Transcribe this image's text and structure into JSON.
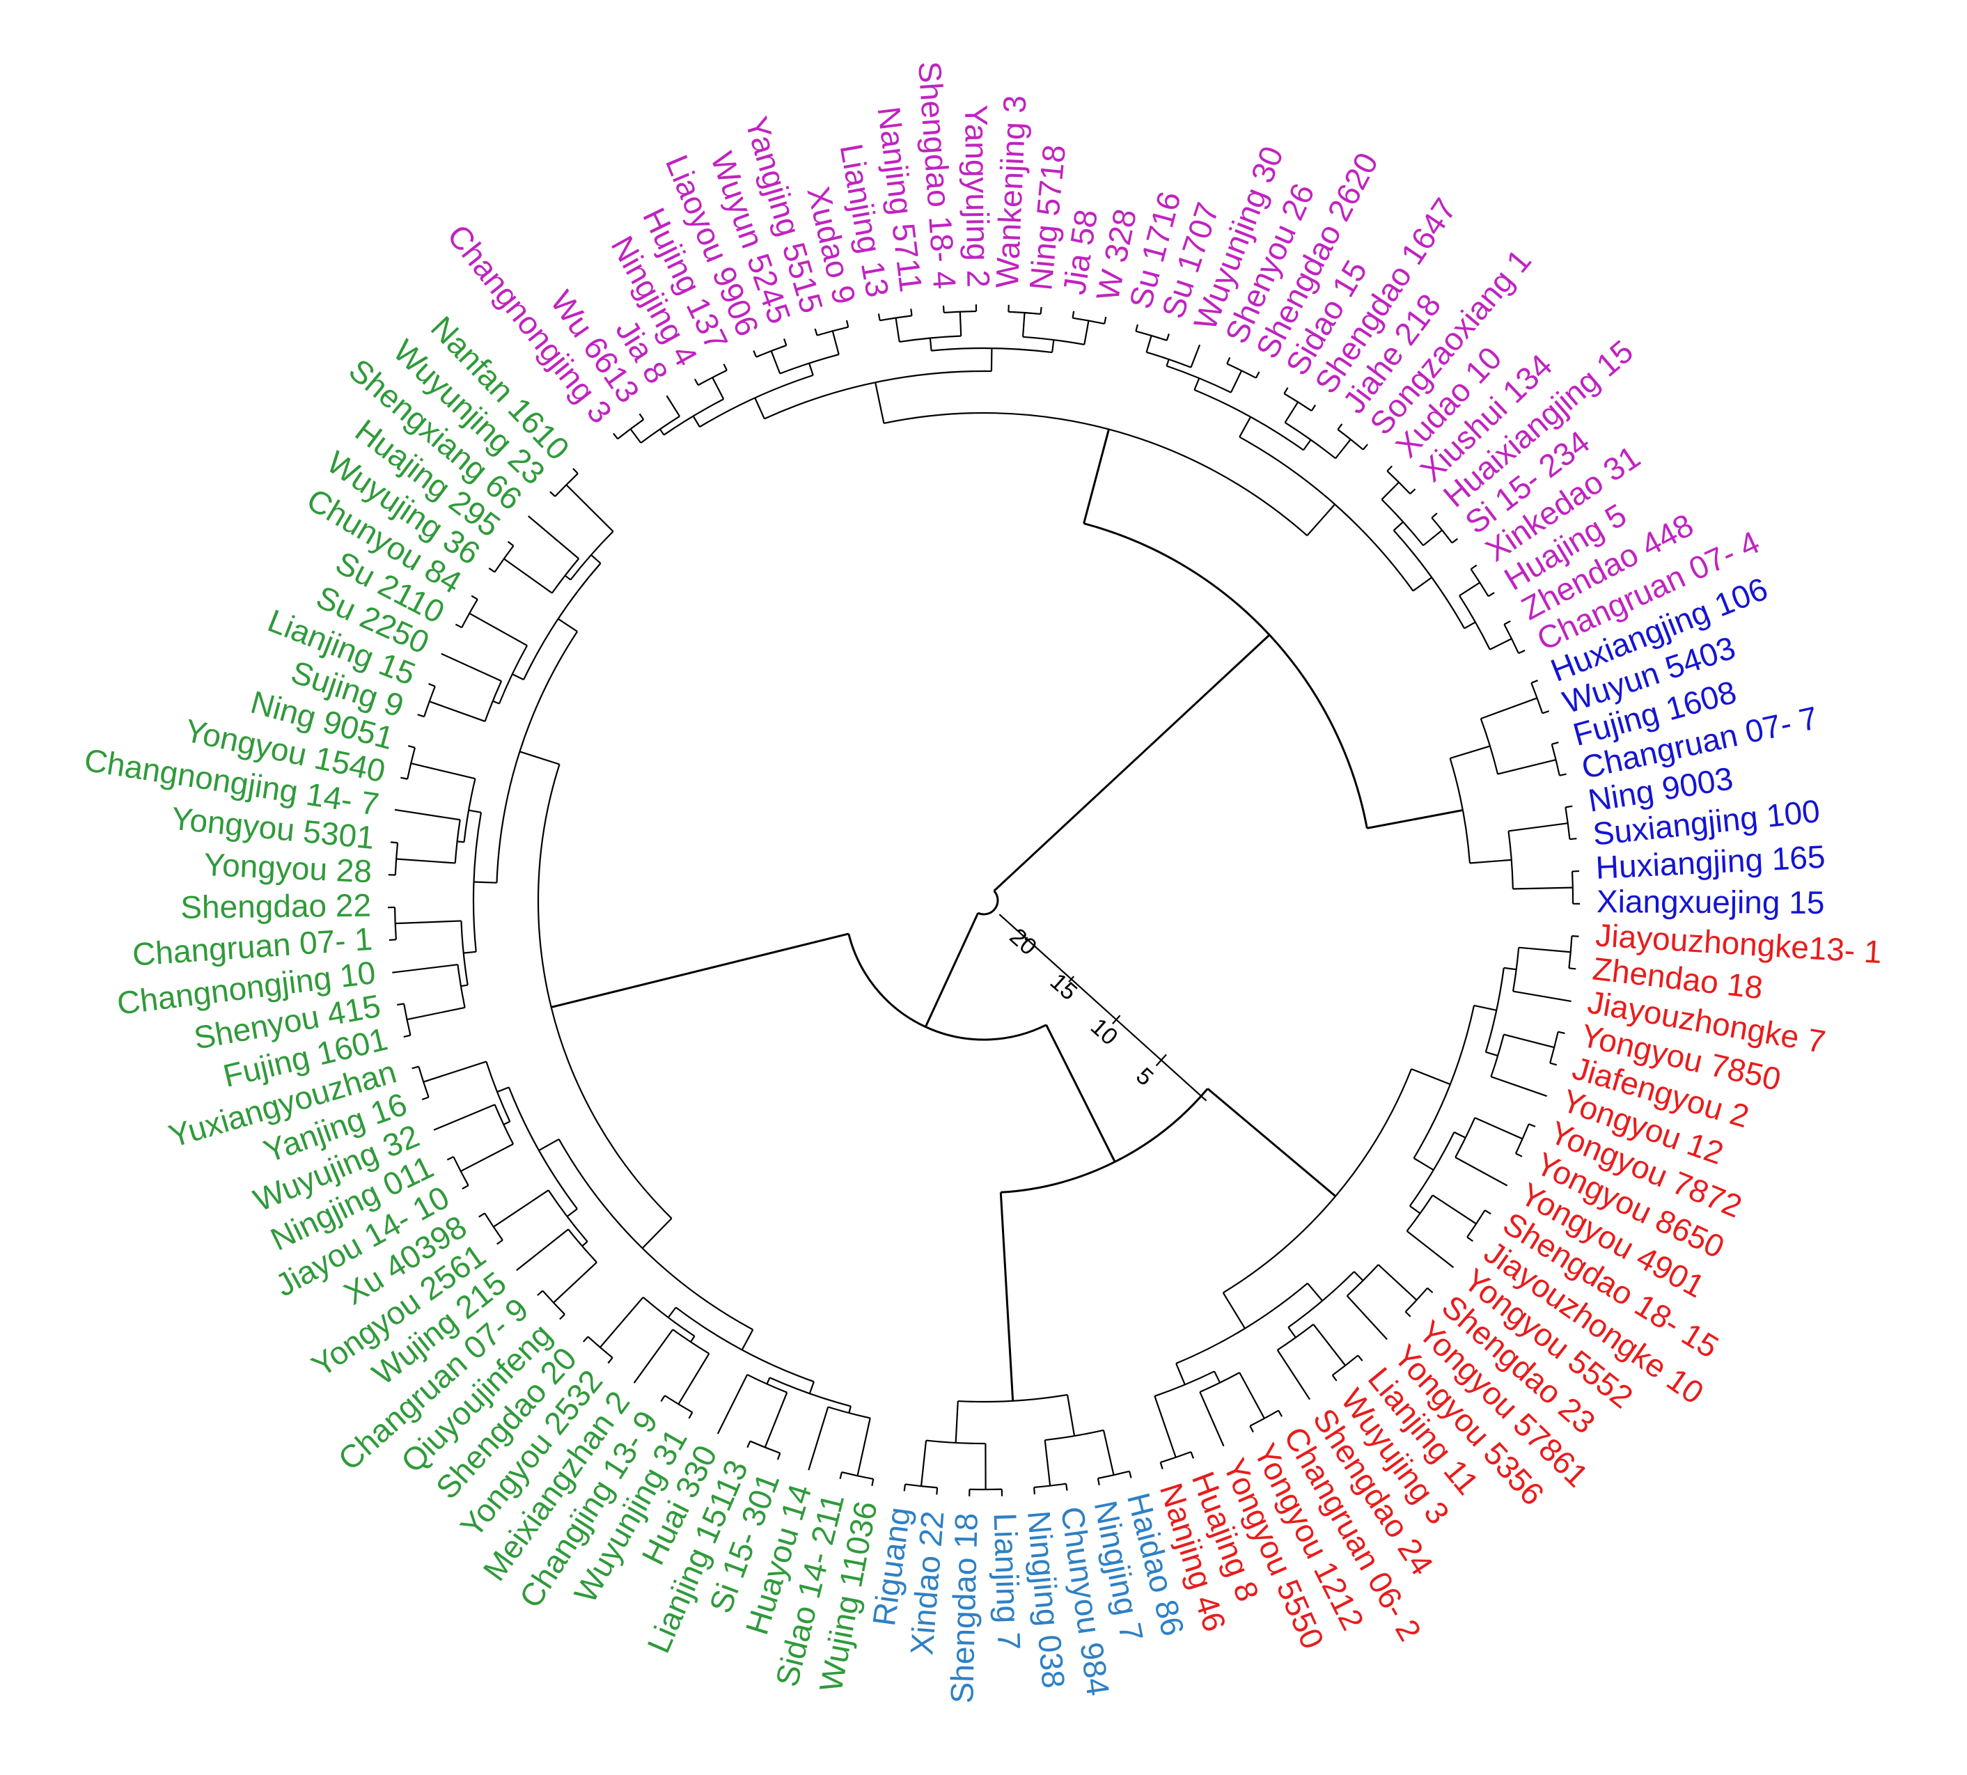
{
  "colors": {
    "magenta": "#c023c0",
    "blue": "#1414d2",
    "red": "#e81c1c",
    "steelblue": "#2e80c4",
    "green": "#2f9a3a",
    "branch": "#000000"
  },
  "scale": {
    "ticks": [
      "5",
      "10",
      "15",
      "20"
    ]
  },
  "clusters": [
    {
      "name": "magenta",
      "color": "#c023c0",
      "labels": [
        "Changnongjing 3",
        "Wu 6613",
        "Jia 8",
        "Ningjing 4",
        "Hujing 137",
        "Liaoyou 9906",
        "Wuyun 5245",
        "Yangjing 5515",
        "Xudao 9",
        "Lianjing 13",
        "Nanjing 5711",
        "Shengdao 18- 4",
        "Yangyujing 2",
        "Wankenjing 3",
        "Ning 5718",
        "Jia 58",
        "W 328",
        "Su 1716",
        "Su 1707",
        "Wuyunjing 30",
        "Shenyou 26",
        "Shengdao 2620",
        "Sidao 15",
        "Shengdao 1647",
        "Jiahe 218",
        "Songzaoxiang 1",
        "Xudao 10",
        "Xiushui 134",
        "Huaixiangjing 15",
        "Si 15- 234",
        "Xinkedao 31",
        "Huajing 5",
        "Zhendao 448",
        "Changruan 07- 4"
      ]
    },
    {
      "name": "blue",
      "color": "#1414d2",
      "labels": [
        "Huxiangjing 106",
        "Wuyun 5403",
        "Fujing 1608",
        "Changruan 07- 7",
        "Ning 9003",
        "Suxiangjing 100",
        "Huxiangjing 165",
        "Xiangxuejing 15"
      ]
    },
    {
      "name": "red",
      "color": "#e81c1c",
      "labels": [
        "Jiayouzhongke13- 1",
        "Zhendao 18",
        "Jiayouzhongke 7",
        "Yongyou 7850",
        "Jiafengyou 2",
        "Yongyou 12",
        "Yongyou 7872",
        "Yongyou 8650",
        "Yongyou 4901",
        "Shengdao 18- 15",
        "Jiayouzhongke 10",
        "Yongyou 5552",
        "Shengdao 23",
        "Yongyou 57861",
        "Yongyou 5356",
        "Lianjing 11",
        "Wuyujing 3",
        "Shengdao 24",
        "Changruan 06- 2",
        "Yongyou 1212",
        "Yongyou 5550",
        "Huajing 8",
        "Nanjing 46"
      ]
    },
    {
      "name": "steelblue",
      "color": "#2e80c4",
      "labels": [
        "Haidao 86",
        "Ningjing 7",
        "Chunyou 984",
        "Ningjing 038",
        "Lianjing 7",
        "Shengdao 18",
        "Xindao 22",
        "Riguang"
      ]
    },
    {
      "name": "green",
      "color": "#2f9a3a",
      "labels": [
        "Wujing 11036",
        "Sidao 14- 211",
        "Huayou 14",
        "Si 15- 301",
        "Lianjing 15113",
        "Huai 330",
        "Wuyunjing 31",
        "Changjing 13- 9",
        "Meixiangzhan 2",
        "Yongyou 2532",
        "Shengdao 20",
        "Qiuyoujinfeng",
        "Changruan 07- 9",
        "Wujing 215",
        "Yongyou 2561",
        "Xu 40398",
        "Jiayou 14- 10",
        "Ningjing 011",
        "Wuyujing 32",
        "Yanjing 16",
        "Yuxiangyouzhan",
        "Fujing 1601",
        "Shenyou 415",
        "Changnongjing 10",
        "Changruan 07- 1",
        "Shengdao 22",
        "Yongyou 28",
        "Yongyou 5301",
        "Changnongjing 14- 7",
        "Yongyou 1540",
        "Ning 9051",
        "Sujing 9",
        "Lianjing 15",
        "Su 2250",
        "Su 2110",
        "Chunyou 84",
        "Wuyujing 36",
        "Huajing 295",
        "Shengxiang 66",
        "Wuyunjing 23",
        "Nanfan 1610"
      ]
    }
  ]
}
